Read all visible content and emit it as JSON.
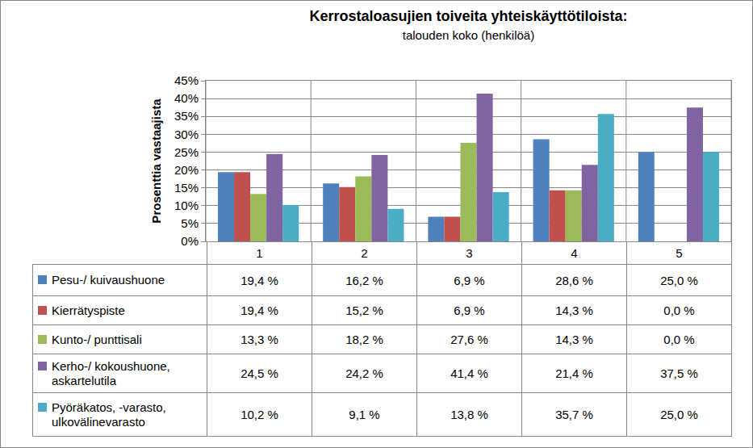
{
  "chart_data": {
    "type": "bar",
    "title": "Kerrostaloasujien toiveita yhteiskäyttötiloista:",
    "subtitle": "talouden koko (henkilöä)",
    "y_label": "Prosenttia vastaajista",
    "categories": [
      "1",
      "2",
      "3",
      "4",
      "5"
    ],
    "series": [
      {
        "name": "Pesu-/ kuivaushuone",
        "color": "#4F81BD",
        "values": [
          19.4,
          16.2,
          6.9,
          28.6,
          25.0
        ],
        "value_labels": [
          "19,4 %",
          "16,2 %",
          "6,9 %",
          "28,6 %",
          "25,0 %"
        ]
      },
      {
        "name": "Kierrätyspiste",
        "color": "#C0504D",
        "values": [
          19.4,
          15.2,
          6.9,
          14.3,
          0.0
        ],
        "value_labels": [
          "19,4 %",
          "15,2 %",
          "6,9 %",
          "14,3 %",
          "0,0 %"
        ]
      },
      {
        "name": "Kunto-/ punttisali",
        "color": "#9BBB59",
        "values": [
          13.3,
          18.2,
          27.6,
          14.3,
          0.0
        ],
        "value_labels": [
          "13,3 %",
          "18,2 %",
          "27,6 %",
          "14,3 %",
          "0,0 %"
        ]
      },
      {
        "name": "Kerho-/ kokoushuone, askartelutila",
        "color": "#8064A2",
        "values": [
          24.5,
          24.2,
          41.4,
          21.4,
          37.5
        ],
        "value_labels": [
          "24,5 %",
          "24,2 %",
          "41,4 %",
          "21,4 %",
          "37,5 %"
        ]
      },
      {
        "name": "Pyöräkatos, -varasto, ulkovälinevarasto",
        "color": "#4BACC6",
        "values": [
          10.2,
          9.1,
          13.8,
          35.7,
          25.0
        ],
        "value_labels": [
          "10,2 %",
          "9,1 %",
          "13,8 %",
          "35,7 %",
          "25,0 %"
        ]
      }
    ],
    "ylim": [
      0,
      45
    ],
    "yticks": [
      {
        "value": 0,
        "label": "0%"
      },
      {
        "value": 5,
        "label": "5%"
      },
      {
        "value": 10,
        "label": "10%"
      },
      {
        "value": 15,
        "label": "15%"
      },
      {
        "value": 20,
        "label": "20%"
      },
      {
        "value": 25,
        "label": "25%"
      },
      {
        "value": 30,
        "label": "30%"
      },
      {
        "value": 35,
        "label": "35%"
      },
      {
        "value": 40,
        "label": "40%"
      },
      {
        "value": 45,
        "label": "45%"
      }
    ],
    "grid": true
  }
}
